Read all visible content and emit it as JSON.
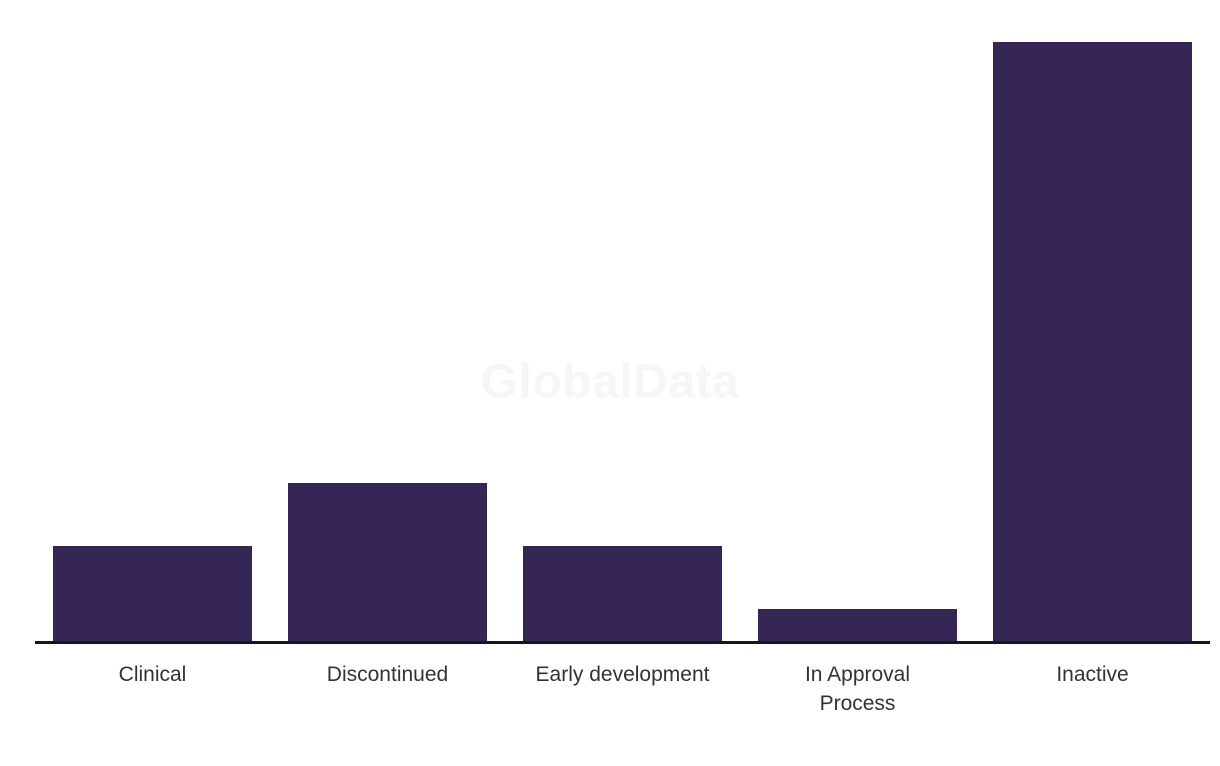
{
  "watermark": {
    "text": "GlobalData",
    "color": "#F6F6F6"
  },
  "chart_data": {
    "type": "bar",
    "title": "",
    "xlabel": "",
    "ylabel": "",
    "categories": [
      "Clinical",
      "Discontinued",
      "Early development",
      "In Approval Process",
      "Inactive"
    ],
    "values": [
      3,
      5,
      3,
      1,
      19
    ],
    "label_lines": [
      [
        "Clinical"
      ],
      [
        "Discontinued"
      ],
      [
        "Early development"
      ],
      [
        "In Approval",
        "Process"
      ],
      [
        "Inactive"
      ]
    ],
    "ylim": [
      0,
      19
    ],
    "grid": false,
    "legend": false,
    "value_axis_visible": false,
    "bar_color": "#352656",
    "axis_color": "#161421",
    "label_color": "#333333"
  }
}
